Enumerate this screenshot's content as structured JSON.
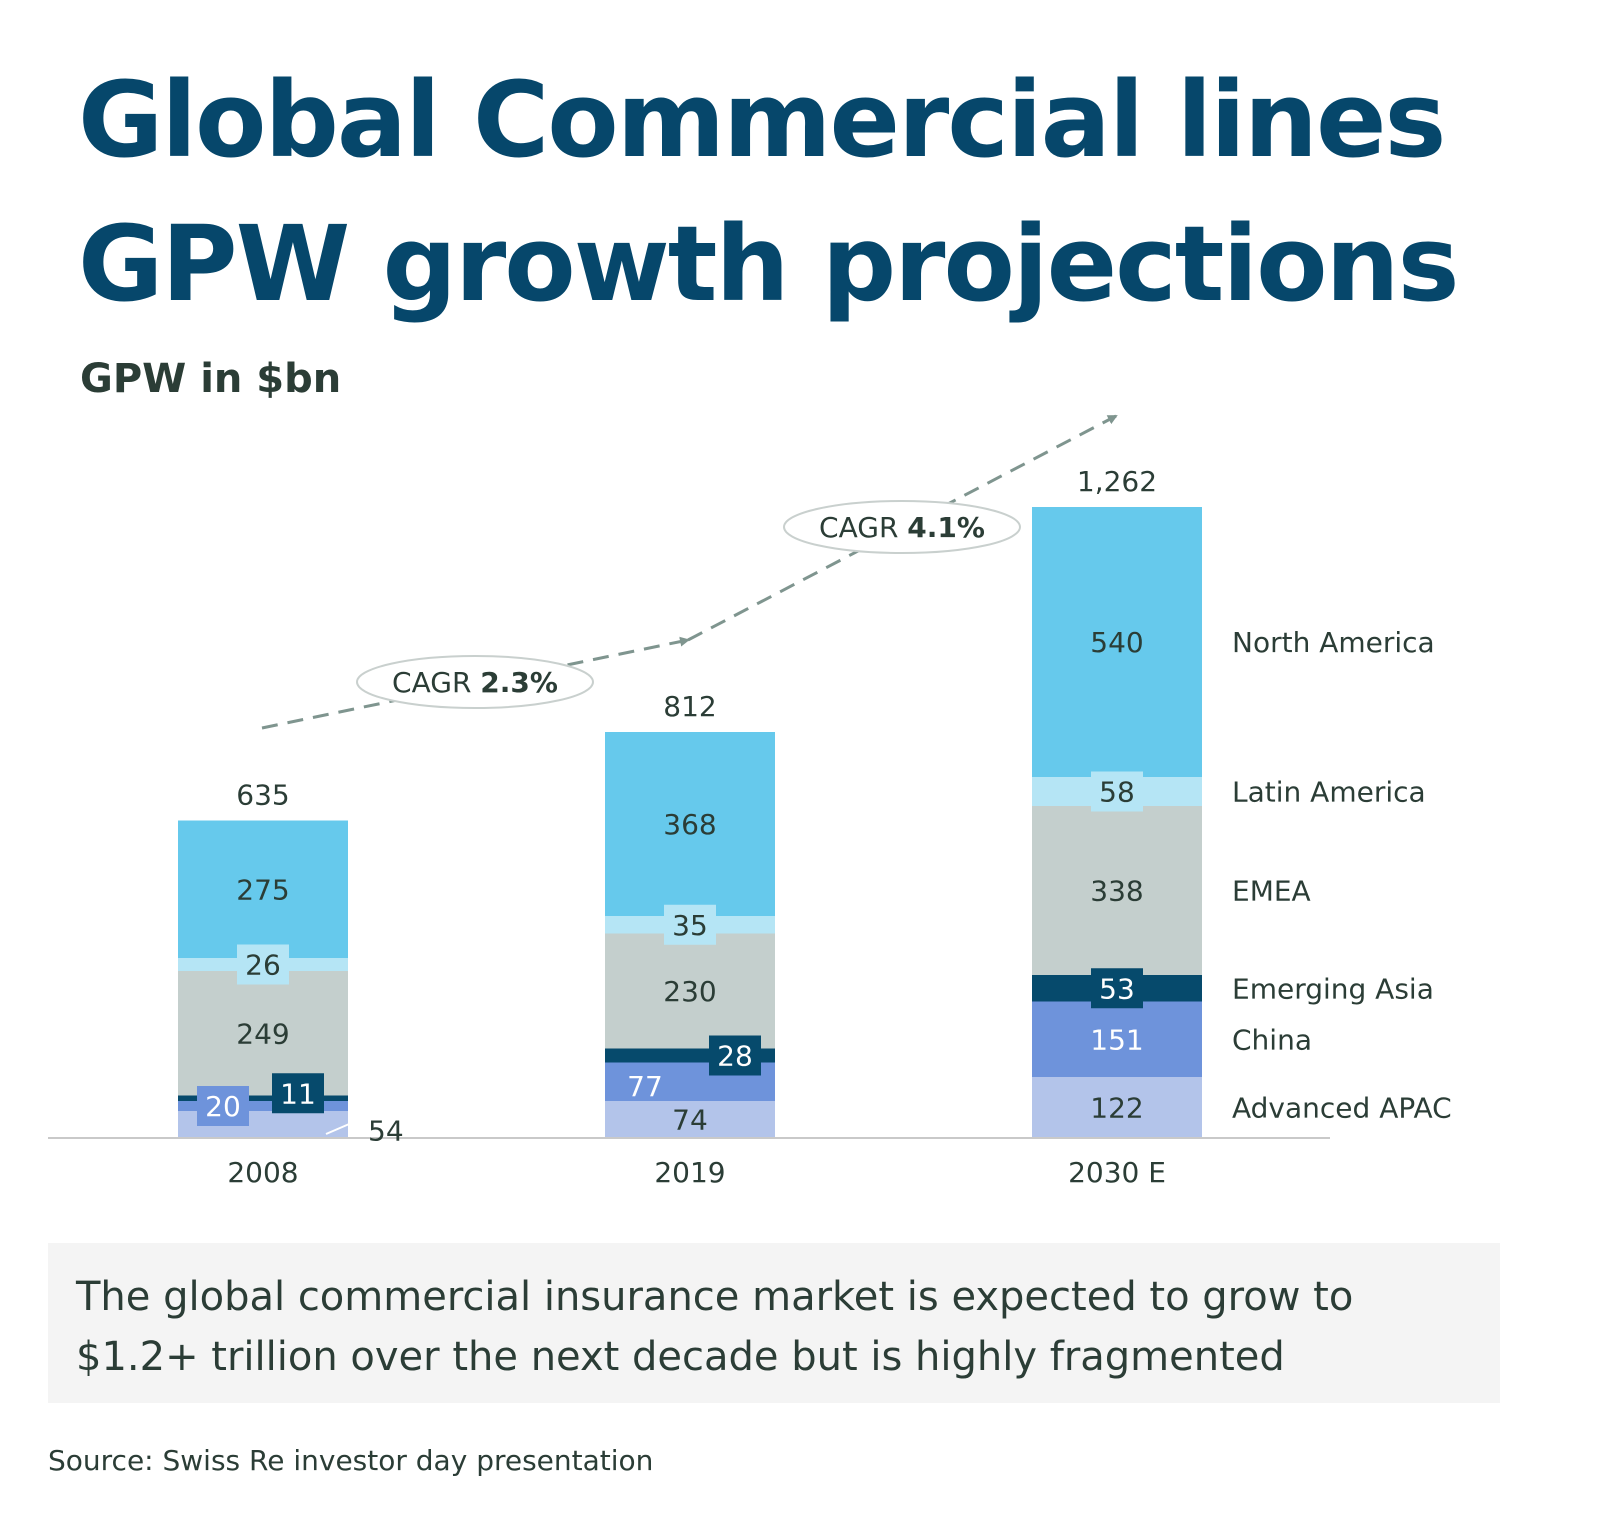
{
  "header": {
    "title_line1": "Global Commercial lines",
    "title_line2": "GPW growth projections",
    "subtitle": "GPW in $bn"
  },
  "chart_data": {
    "type": "bar",
    "stacked": true,
    "categories": [
      "2008",
      "2019",
      "2030  E"
    ],
    "totals": [
      "635",
      "812",
      "1,262"
    ],
    "series": [
      {
        "name": "Advanced APAC",
        "values": [
          54,
          74,
          122
        ],
        "color": "#b3c4ea"
      },
      {
        "name": "China",
        "values": [
          20,
          77,
          151
        ],
        "color": "#6e93db"
      },
      {
        "name": "Emerging Asia",
        "values": [
          11,
          28,
          53
        ],
        "color": "#064a6c"
      },
      {
        "name": "EMEA",
        "values": [
          249,
          230,
          338
        ],
        "color": "#c4cfcd"
      },
      {
        "name": "Latin America",
        "values": [
          26,
          35,
          58
        ],
        "color": "#b5e5f5"
      },
      {
        "name": "North America",
        "values": [
          275,
          368,
          540
        ],
        "color": "#66c9ec"
      }
    ],
    "legend": [
      "North America",
      "Latin America",
      "EMEA",
      "Emerging Asia",
      "China",
      "Advanced APAC"
    ],
    "legend_placement": "right",
    "annotations": [
      {
        "prefix": "CAGR",
        "value": "2.3%"
      },
      {
        "prefix": "CAGR",
        "value": "4.1%"
      }
    ],
    "title": "",
    "xlabel": "",
    "ylabel": ""
  },
  "footer": {
    "summary": "The global commercial insurance market is expected to grow to $1.2+ trillion over the next decade but is highly fragmented",
    "source": "Source: Swiss Re investor day presentation"
  }
}
